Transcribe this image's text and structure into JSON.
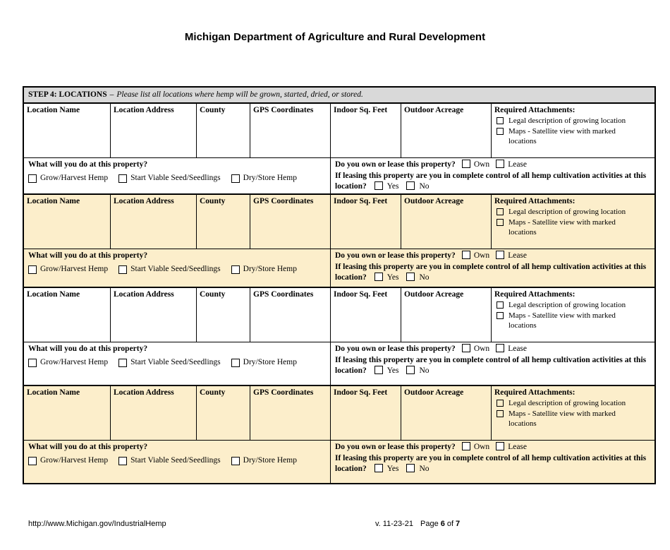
{
  "page": {
    "title": "Michigan Department of Agriculture and Rural Development"
  },
  "step_header": {
    "label": "STEP 4: LOCATIONS",
    "separator": "–",
    "instruction": "Please list all locations where hemp will be grown, started, dried, or stored."
  },
  "table": {
    "columns": [
      "Location Name",
      "Location Address",
      "County",
      "GPS Coordinates",
      "Indoor Sq. Feet",
      "Outdoor Acreage"
    ],
    "required_attachments": {
      "label": "Required Attachments:",
      "items": [
        "Legal description of growing location",
        "Maps - Satellite view with marked locations"
      ]
    },
    "questions": {
      "what_question": "What will you do at this property?",
      "what_options": [
        "Grow/Harvest Hemp",
        "Start Viable Seed/Seedlings",
        "Dry/Store Hemp"
      ],
      "own_lease_question": "Do you own or lease this property?",
      "own_lease_options": [
        "Own",
        "Lease"
      ],
      "leasing_question": "If leasing this property are you in complete control of all hemp cultivation activities at this location?",
      "leasing_options": [
        "Yes",
        "No"
      ]
    },
    "blocks": [
      {
        "shade": "white"
      },
      {
        "shade": "tan"
      },
      {
        "shade": "white"
      },
      {
        "shade": "tan"
      }
    ]
  },
  "colors": {
    "tan_row": "#FCEECB",
    "header_bar": "#D9D9D9"
  },
  "footer": {
    "url": "http://www.Michigan.gov/IndustrialHemp",
    "version": "v. 11-23-21",
    "page_label": "Page",
    "page_number": "6",
    "of_label": "of",
    "total_pages": "7"
  }
}
